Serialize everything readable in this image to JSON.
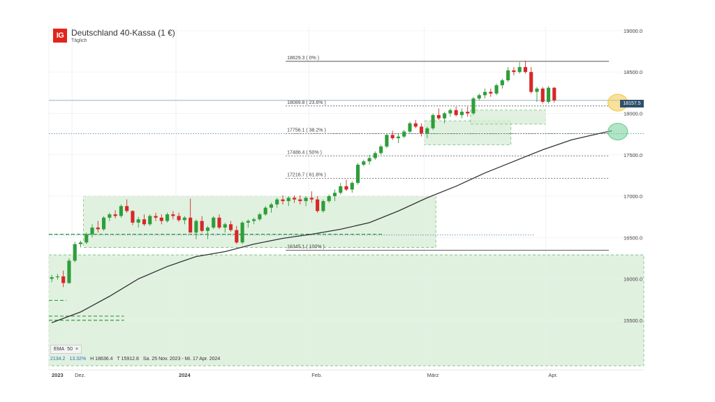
{
  "header": {
    "logo": "IG",
    "title": "Deutschland 40-Kassa (1 €)",
    "subtitle": "Täglich"
  },
  "last_price": "18157.5",
  "legend": {
    "ema_label": "EMA",
    "ema_period": "50",
    "close_glyph": "×",
    "stat_a": "2134.2",
    "stat_b": "13.32%",
    "high": "H 18636.4",
    "low": "T 15912.8",
    "range": "Sa. 25 Nov. 2023 - Mi. 17 Apr. 2024"
  },
  "colors": {
    "up": "#2e9e3a",
    "down": "#d72828",
    "zone_fill": "#d7ecd6",
    "zone_border": "#6fbf73",
    "ema_line": "#333333",
    "fib_line": "#555555"
  },
  "fib_labels": [
    {
      "text": "18629.3 ( 0% )",
      "price": 18629.3
    },
    {
      "text": "18089.8 ( 23.6% )",
      "price": 18089.8
    },
    {
      "text": "17756.1 ( 38.2% )",
      "price": 17756.1
    },
    {
      "text": "17486.4 ( 50% )",
      "price": 17486.4
    },
    {
      "text": "17216.7 ( 61.8% )",
      "price": 17216.7
    },
    {
      "text": "16345.1 ( 100% )",
      "price": 16345.1
    }
  ],
  "chart_data": {
    "type": "candlestick",
    "title": "Deutschland 40-Kassa (1 €)",
    "y_axis": {
      "ticks": [
        15500,
        16000,
        16500,
        17000,
        17500,
        18000,
        18500,
        19000
      ],
      "tick_labels": [
        "15500.0",
        "16000.0",
        "16500.0",
        "17000.0",
        "17500.0",
        "18000.0",
        "18500.0",
        "19000.0"
      ],
      "ylim": [
        14900,
        19050
      ]
    },
    "x_axis": {
      "labels": [
        {
          "text": "2023",
          "index": 0
        },
        {
          "text": "Dez.",
          "index": 4
        },
        {
          "text": "2024",
          "index": 22
        },
        {
          "text": "Feb.",
          "index": 45
        },
        {
          "text": "März",
          "index": 65
        },
        {
          "text": "Apr.",
          "index": 86
        }
      ],
      "xlim": [
        0,
        103
      ]
    },
    "candles": [
      [
        16000,
        16050,
        15960,
        16020
      ],
      [
        16020,
        16060,
        15990,
        16030
      ],
      [
        16030,
        16100,
        15900,
        15950
      ],
      [
        15950,
        16250,
        15940,
        16220
      ],
      [
        16220,
        16450,
        16200,
        16420
      ],
      [
        16420,
        16460,
        16380,
        16440
      ],
      [
        16440,
        16560,
        16420,
        16540
      ],
      [
        16540,
        16660,
        16500,
        16620
      ],
      [
        16620,
        16700,
        16560,
        16600
      ],
      [
        16600,
        16760,
        16580,
        16740
      ],
      [
        16740,
        16800,
        16700,
        16780
      ],
      [
        16780,
        16830,
        16730,
        16760
      ],
      [
        16760,
        16900,
        16740,
        16880
      ],
      [
        16880,
        16960,
        16800,
        16820
      ],
      [
        16820,
        16830,
        16650,
        16680
      ],
      [
        16680,
        16750,
        16620,
        16720
      ],
      [
        16720,
        16780,
        16640,
        16660
      ],
      [
        16660,
        16780,
        16640,
        16760
      ],
      [
        16760,
        16800,
        16700,
        16740
      ],
      [
        16740,
        16780,
        16660,
        16700
      ],
      [
        16700,
        16800,
        16680,
        16780
      ],
      [
        16780,
        16820,
        16720,
        16760
      ],
      [
        16760,
        16800,
        16690,
        16710
      ],
      [
        16710,
        16760,
        16660,
        16740
      ],
      [
        16740,
        16970,
        16560,
        16560
      ],
      [
        16560,
        16720,
        16480,
        16700
      ],
      [
        16700,
        16760,
        16560,
        16580
      ],
      [
        16580,
        16640,
        16480,
        16620
      ],
      [
        16620,
        16760,
        16600,
        16740
      ],
      [
        16740,
        16780,
        16600,
        16620
      ],
      [
        16620,
        16680,
        16560,
        16660
      ],
      [
        16660,
        16700,
        16570,
        16590
      ],
      [
        16590,
        16640,
        16420,
        16440
      ],
      [
        16440,
        16700,
        16420,
        16680
      ],
      [
        16680,
        16720,
        16620,
        16700
      ],
      [
        16700,
        16740,
        16660,
        16720
      ],
      [
        16720,
        16800,
        16700,
        16780
      ],
      [
        16780,
        16880,
        16760,
        16860
      ],
      [
        16860,
        16920,
        16800,
        16900
      ],
      [
        16900,
        16980,
        16860,
        16960
      ],
      [
        16960,
        17010,
        16900,
        16940
      ],
      [
        16940,
        17000,
        16880,
        16980
      ],
      [
        16980,
        17010,
        16920,
        16960
      ],
      [
        16960,
        17010,
        16900,
        16940
      ],
      [
        16940,
        17000,
        16880,
        16980
      ],
      [
        16980,
        17060,
        16920,
        16960
      ],
      [
        16960,
        17000,
        16800,
        16820
      ],
      [
        16820,
        16960,
        16800,
        16940
      ],
      [
        16940,
        17020,
        16920,
        17000
      ],
      [
        17000,
        17080,
        16940,
        17040
      ],
      [
        17040,
        17160,
        17020,
        17120
      ],
      [
        17120,
        17200,
        17060,
        17080
      ],
      [
        17080,
        17180,
        17040,
        17160
      ],
      [
        17160,
        17400,
        17140,
        17380
      ],
      [
        17380,
        17440,
        17360,
        17420
      ],
      [
        17420,
        17500,
        17380,
        17460
      ],
      [
        17460,
        17540,
        17440,
        17520
      ],
      [
        17520,
        17620,
        17500,
        17600
      ],
      [
        17600,
        17750,
        17580,
        17740
      ],
      [
        17740,
        17790,
        17680,
        17700
      ],
      [
        17700,
        17760,
        17640,
        17720
      ],
      [
        17720,
        17800,
        17700,
        17780
      ],
      [
        17780,
        17900,
        17760,
        17880
      ],
      [
        17880,
        17920,
        17820,
        17840
      ],
      [
        17840,
        17880,
        17720,
        17760
      ],
      [
        17760,
        17840,
        17700,
        17820
      ],
      [
        17820,
        18000,
        17800,
        17980
      ],
      [
        17980,
        18060,
        17920,
        17940
      ],
      [
        17940,
        18020,
        17880,
        18000
      ],
      [
        18000,
        18060,
        17960,
        18040
      ],
      [
        18040,
        18080,
        17960,
        17980
      ],
      [
        17980,
        18060,
        17940,
        18020
      ],
      [
        18020,
        18080,
        17960,
        18000
      ],
      [
        18000,
        18200,
        17980,
        18180
      ],
      [
        18180,
        18240,
        18160,
        18220
      ],
      [
        18220,
        18300,
        18180,
        18260
      ],
      [
        18260,
        18300,
        18200,
        18240
      ],
      [
        18240,
        18360,
        18220,
        18340
      ],
      [
        18340,
        18420,
        18300,
        18400
      ],
      [
        18400,
        18560,
        18380,
        18520
      ],
      [
        18520,
        18560,
        18460,
        18500
      ],
      [
        18500,
        18620,
        18480,
        18560
      ],
      [
        18560,
        18637,
        18480,
        18500
      ],
      [
        18500,
        18560,
        18240,
        18260
      ],
      [
        18260,
        18320,
        18140,
        18300
      ],
      [
        18300,
        18320,
        18120,
        18140
      ],
      [
        18140,
        18330,
        18120,
        18310
      ],
      [
        18310,
        18320,
        18130,
        18157
      ]
    ],
    "ema": [
      [
        0,
        15470
      ],
      [
        5,
        15600
      ],
      [
        10,
        15790
      ],
      [
        15,
        16000
      ],
      [
        20,
        16150
      ],
      [
        25,
        16270
      ],
      [
        30,
        16330
      ],
      [
        35,
        16420
      ],
      [
        40,
        16490
      ],
      [
        45,
        16540
      ],
      [
        50,
        16600
      ],
      [
        55,
        16680
      ],
      [
        60,
        16820
      ],
      [
        65,
        16980
      ],
      [
        70,
        17120
      ],
      [
        75,
        17280
      ],
      [
        80,
        17420
      ],
      [
        85,
        17560
      ],
      [
        90,
        17680
      ],
      [
        95,
        17760
      ],
      [
        97,
        17790
      ]
    ],
    "zones": [
      {
        "x0": 6,
        "x1": 67,
        "y0": 16380,
        "y1": 17000
      },
      {
        "x0": 0,
        "x1": 103,
        "y0": 14950,
        "y1": 16290
      },
      {
        "x0": 65,
        "x1": 80,
        "y0": 17620,
        "y1": 17910
      },
      {
        "x0": 73,
        "x1": 86,
        "y0": 17870,
        "y1": 18040
      }
    ],
    "fib_levels": [
      18629.3,
      18089.8,
      17756.1,
      17486.4,
      17216.7,
      16345.1
    ],
    "h_lines": [
      {
        "y": 18157.5,
        "style": "solid",
        "x0": 0,
        "x1": 103
      },
      {
        "y": 17756,
        "style": "dotted",
        "x0": 0,
        "x1": 103
      },
      {
        "y": 16530,
        "style": "dotted",
        "x0": 0,
        "x1": 84
      },
      {
        "y": 16540,
        "style": "dashed",
        "x0": 0,
        "x1": 58
      },
      {
        "y": 15740,
        "style": "dashed",
        "x0": 0,
        "x1": 3
      },
      {
        "y": 15550,
        "style": "dashed",
        "x0": 0,
        "x1": 13
      },
      {
        "y": 15500,
        "style": "dashed",
        "x0": 0,
        "x1": 13
      }
    ],
    "highlights": [
      {
        "x": 98,
        "y": 18130,
        "color": "#f2c94c"
      },
      {
        "x": 98,
        "y": 17780,
        "color": "#6fcf97"
      }
    ]
  }
}
